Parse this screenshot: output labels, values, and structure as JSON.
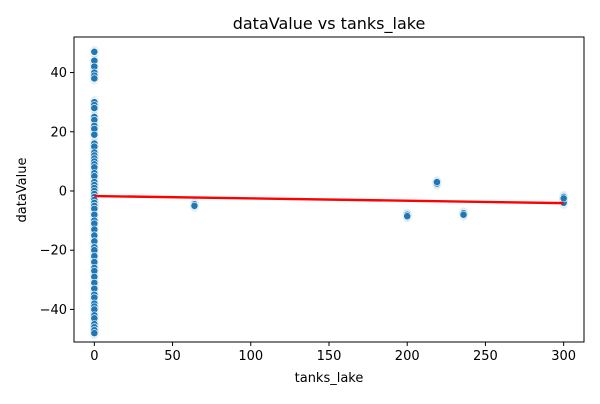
{
  "chart_data": {
    "type": "scatter",
    "title": "dataValue vs tanks_lake",
    "xlabel": "tanks_lake",
    "ylabel": "dataValue",
    "xlim": [
      -13,
      313
    ],
    "ylim": [
      -51,
      52
    ],
    "xticks": [
      0,
      50,
      100,
      150,
      200,
      250,
      300
    ],
    "yticks": [
      -40,
      -20,
      0,
      20,
      40
    ],
    "grid": false,
    "colors": {
      "point": "#1f77b4",
      "point_edge": "#ffffff",
      "trend": "#ff0000",
      "band": "#1f77b4"
    },
    "points": [
      {
        "x": 0,
        "y": 47
      },
      {
        "x": 0,
        "y": 44
      },
      {
        "x": 0,
        "y": 42
      },
      {
        "x": 0,
        "y": 40
      },
      {
        "x": 0,
        "y": 39
      },
      {
        "x": 0,
        "y": 38
      },
      {
        "x": 0,
        "y": 30
      },
      {
        "x": 0,
        "y": 29
      },
      {
        "x": 0,
        "y": 28
      },
      {
        "x": 0,
        "y": 25
      },
      {
        "x": 0,
        "y": 24
      },
      {
        "x": 0,
        "y": 22
      },
      {
        "x": 0,
        "y": 21
      },
      {
        "x": 0,
        "y": 19
      },
      {
        "x": 0,
        "y": 16
      },
      {
        "x": 0,
        "y": 15
      },
      {
        "x": 0,
        "y": 13
      },
      {
        "x": 0,
        "y": 12
      },
      {
        "x": 0,
        "y": 11
      },
      {
        "x": 0,
        "y": 10
      },
      {
        "x": 0,
        "y": 9
      },
      {
        "x": 0,
        "y": 8
      },
      {
        "x": 0,
        "y": 6
      },
      {
        "x": 0,
        "y": 5
      },
      {
        "x": 0,
        "y": 3
      },
      {
        "x": 0,
        "y": 2
      },
      {
        "x": 0,
        "y": 1
      },
      {
        "x": 0,
        "y": 0
      },
      {
        "x": 0,
        "y": -1
      },
      {
        "x": 0,
        "y": -2
      },
      {
        "x": 0,
        "y": -3
      },
      {
        "x": 0,
        "y": -4
      },
      {
        "x": 0,
        "y": -5
      },
      {
        "x": 0,
        "y": -6
      },
      {
        "x": 0,
        "y": -8
      },
      {
        "x": 0,
        "y": -10
      },
      {
        "x": 0,
        "y": -11
      },
      {
        "x": 0,
        "y": -13
      },
      {
        "x": 0,
        "y": -15
      },
      {
        "x": 0,
        "y": -17
      },
      {
        "x": 0,
        "y": -19
      },
      {
        "x": 0,
        "y": -20
      },
      {
        "x": 0,
        "y": -22
      },
      {
        "x": 0,
        "y": -24
      },
      {
        "x": 0,
        "y": -26
      },
      {
        "x": 0,
        "y": -27
      },
      {
        "x": 0,
        "y": -29
      },
      {
        "x": 0,
        "y": -31
      },
      {
        "x": 0,
        "y": -33
      },
      {
        "x": 0,
        "y": -35
      },
      {
        "x": 0,
        "y": -36
      },
      {
        "x": 0,
        "y": -38
      },
      {
        "x": 0,
        "y": -39
      },
      {
        "x": 0,
        "y": -40
      },
      {
        "x": 0,
        "y": -42
      },
      {
        "x": 0,
        "y": -43
      },
      {
        "x": 0,
        "y": -45
      },
      {
        "x": 0,
        "y": -46
      },
      {
        "x": 0,
        "y": -47
      },
      {
        "x": 0,
        "y": -48
      },
      {
        "x": 64,
        "y": -4.5
      },
      {
        "x": 64,
        "y": -5
      },
      {
        "x": 200,
        "y": -8
      },
      {
        "x": 200,
        "y": -8.5
      },
      {
        "x": 219,
        "y": 2.5
      },
      {
        "x": 219,
        "y": 3
      },
      {
        "x": 236,
        "y": -7.5
      },
      {
        "x": 236,
        "y": -8
      },
      {
        "x": 300,
        "y": -2
      },
      {
        "x": 300,
        "y": -3
      },
      {
        "x": 300,
        "y": -4
      },
      {
        "x": 300,
        "y": -2.5
      }
    ],
    "trend_line": {
      "x": [
        0,
        300
      ],
      "y": [
        -1.7,
        -4.1
      ]
    }
  }
}
